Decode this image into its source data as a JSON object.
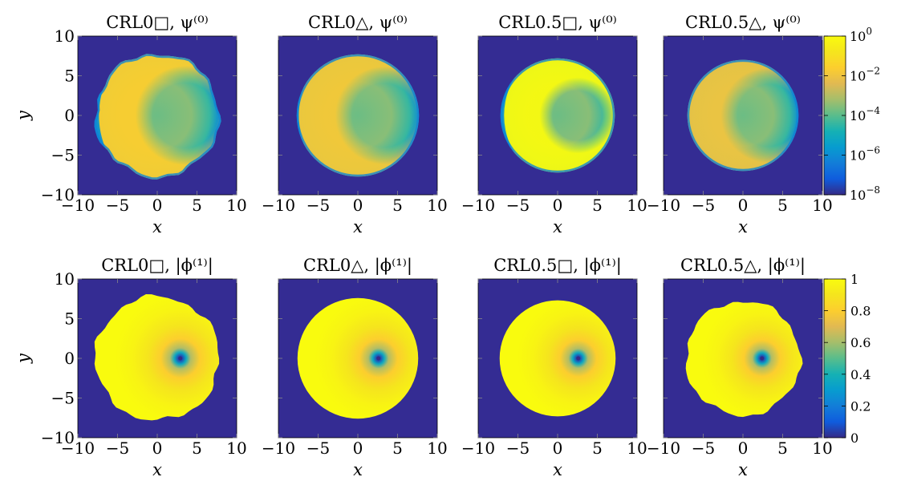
{
  "chart_data": [
    {
      "type": "heatmap",
      "title": "CRL0□, ψ⁽⁰⁾",
      "xlabel": "x",
      "ylabel": "y",
      "xlim": [
        -10,
        10
      ],
      "ylim": [
        -10,
        10
      ],
      "xticks": [
        "−10",
        "−5",
        "0",
        "5",
        "10"
      ],
      "yticks": [
        "10",
        "5",
        "0",
        "−5",
        "−10"
      ],
      "quantity": "psi",
      "disk_radius": 7.8,
      "rough_edge": true,
      "crescent": {
        "center_x": 3.5,
        "radius": 6.8,
        "peak": -1.6
      },
      "vortex": null
    },
    {
      "type": "heatmap",
      "title": "CRL0△, ψ⁽⁰⁾",
      "xlabel": "x",
      "ylabel": "",
      "xlim": [
        -10,
        10
      ],
      "ylim": [
        -10,
        10
      ],
      "xticks": [
        "−10",
        "−5",
        "0",
        "5",
        "10"
      ],
      "yticks": [],
      "quantity": "psi",
      "disk_radius": 7.7,
      "rough_edge": false,
      "crescent": {
        "center_x": 3.3,
        "radius": 6.7,
        "peak": -1.8
      },
      "vortex": null
    },
    {
      "type": "heatmap",
      "title": "CRL0.5□, ψ⁽⁰⁾",
      "xlabel": "x",
      "ylabel": "",
      "xlim": [
        -10,
        10
      ],
      "ylim": [
        -10,
        10
      ],
      "xticks": [
        "−10",
        "−5",
        "0",
        "5",
        "10"
      ],
      "yticks": [],
      "quantity": "psi",
      "disk_radius": 7.2,
      "rough_edge": false,
      "crescent": {
        "center_x": 2.5,
        "radius": 5.2,
        "peak": 0.0
      },
      "vortex": null
    },
    {
      "type": "heatmap",
      "title": "CRL0.5△, ψ⁽⁰⁾",
      "xlabel": "x",
      "ylabel": "",
      "xlim": [
        -10,
        10
      ],
      "ylim": [
        -10,
        10
      ],
      "xticks": [
        "−10",
        "−5",
        "0",
        "5",
        "10"
      ],
      "yticks": [],
      "quantity": "psi",
      "disk_radius": 7.0,
      "rough_edge": false,
      "crescent": {
        "center_x": 3.2,
        "radius": 6.5,
        "peak": -2.0
      },
      "vortex": null,
      "colorbar": {
        "scale": "log",
        "min_exp": -8,
        "max_exp": 0,
        "tick_base": "10",
        "tick_exponents": [
          "0",
          "−2",
          "−4",
          "−6",
          "−8"
        ]
      }
    },
    {
      "type": "heatmap",
      "title": "CRL0□, |ϕ⁽¹⁾|",
      "xlabel": "x",
      "ylabel": "y",
      "xlim": [
        -10,
        10
      ],
      "ylim": [
        -10,
        10
      ],
      "xticks": [
        "−10",
        "−5",
        "0",
        "5",
        "10"
      ],
      "yticks": [
        "10",
        "5",
        "0",
        "−5",
        "−10"
      ],
      "quantity": "phi",
      "disk_radius": 7.8,
      "rough_edge": true,
      "crescent": null,
      "vortex": {
        "x": 2.9,
        "y": 0,
        "core": 1.6
      }
    },
    {
      "type": "heatmap",
      "title": "CRL0△, |ϕ⁽¹⁾|",
      "xlabel": "x",
      "ylabel": "",
      "xlim": [
        -10,
        10
      ],
      "ylim": [
        -10,
        10
      ],
      "xticks": [
        "−10",
        "−5",
        "0",
        "5",
        "10"
      ],
      "yticks": [],
      "quantity": "phi",
      "disk_radius": 7.6,
      "rough_edge": false,
      "crescent": null,
      "vortex": {
        "x": 2.6,
        "y": 0,
        "core": 1.6
      }
    },
    {
      "type": "heatmap",
      "title": "CRL0.5□, |ϕ⁽¹⁾|",
      "xlabel": "x",
      "ylabel": "",
      "xlim": [
        -10,
        10
      ],
      "ylim": [
        -10,
        10
      ],
      "xticks": [
        "−10",
        "−5",
        "0",
        "5",
        "10"
      ],
      "yticks": [],
      "quantity": "phi",
      "disk_radius": 7.3,
      "rough_edge": false,
      "crescent": null,
      "vortex": {
        "x": 2.6,
        "y": 0,
        "core": 1.6
      }
    },
    {
      "type": "heatmap",
      "title": "CRL0.5△, |ϕ⁽¹⁾|",
      "xlabel": "x",
      "ylabel": "",
      "xlim": [
        -10,
        10
      ],
      "ylim": [
        -10,
        10
      ],
      "xticks": [
        "−10",
        "−5",
        "0",
        "5",
        "10"
      ],
      "yticks": [],
      "quantity": "phi",
      "disk_radius": 7.2,
      "rough_edge": true,
      "crescent": null,
      "vortex": {
        "x": 2.4,
        "y": 0,
        "core": 1.6
      },
      "colorbar": {
        "scale": "linear",
        "min": 0,
        "max": 1,
        "ticks": [
          "1",
          "0.8",
          "0.6",
          "0.4",
          "0.2",
          "0"
        ]
      }
    }
  ]
}
